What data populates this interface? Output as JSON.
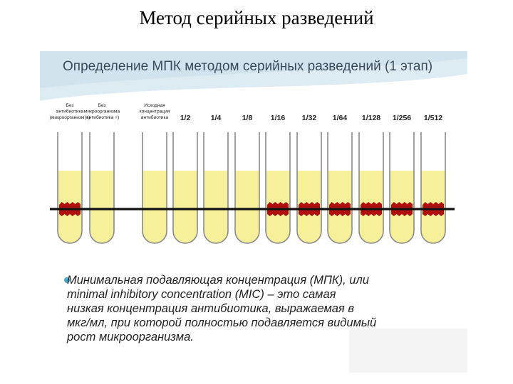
{
  "page_title": "Метод серийных разведений",
  "slide": {
    "heading": "Определение МПК методом серийных разведений (1 этап)",
    "tubes": [
      {
        "label_lines": [
          "Без",
          "антибиотика",
          "(микроорганизм +)"
        ],
        "growth": true
      },
      {
        "label_lines": [
          "Без",
          "микроорганизма",
          "(антибиотика +)"
        ],
        "growth": false
      },
      {
        "label_lines": [
          "Исходная",
          "концентрация",
          "антибиотика"
        ],
        "growth": false
      },
      {
        "label_lines": [
          "1/2"
        ],
        "growth": false
      },
      {
        "label_lines": [
          "1/4"
        ],
        "growth": false
      },
      {
        "label_lines": [
          "1/8"
        ],
        "growth": false
      },
      {
        "label_lines": [
          "1/16"
        ],
        "growth": true
      },
      {
        "label_lines": [
          "1/32"
        ],
        "growth": true
      },
      {
        "label_lines": [
          "1/64"
        ],
        "growth": true
      },
      {
        "label_lines": [
          "1/128"
        ],
        "growth": true
      },
      {
        "label_lines": [
          "1/256"
        ],
        "growth": true
      },
      {
        "label_lines": [
          "1/512"
        ],
        "growth": true
      }
    ],
    "colors": {
      "header_band": "#dbeaf2",
      "liquid": "#f7f09a",
      "growth": "#b01010",
      "line": "#111111",
      "bullet": "#46a6cc"
    },
    "definition_lines": [
      "Минимальная подавляющая концентрация (МПК), или",
      "minimal inhibitory concentration (MIC) – это самая",
      "низкая концентрация антибиотика, выражаемая в",
      "мкг/мл, при которой полностью подавляется видимый",
      "рост микроорганизма."
    ]
  }
}
